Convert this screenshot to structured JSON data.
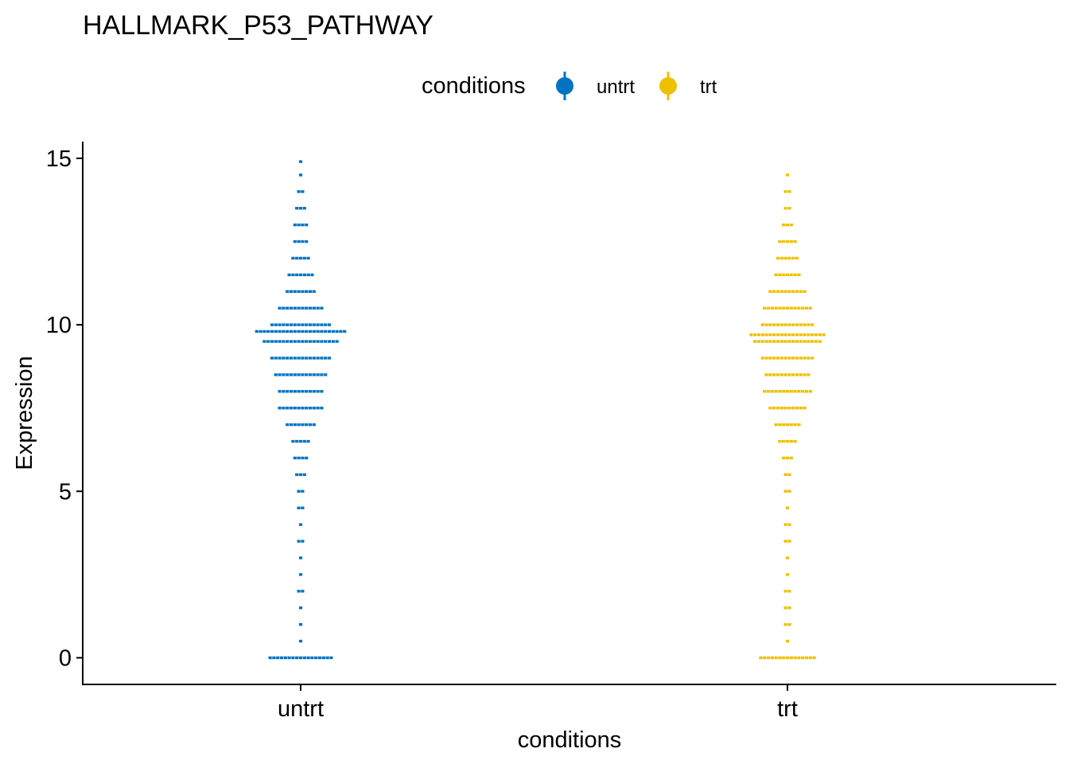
{
  "chart_data": {
    "type": "dotplot",
    "title": "HALLMARK_P53_PATHWAY",
    "xlabel": "conditions",
    "ylabel": "Expression",
    "ylim": [
      -0.8,
      15.5
    ],
    "y_ticks": [
      0,
      5,
      10,
      15
    ],
    "categories": [
      "untrt",
      "trt"
    ],
    "grid": false,
    "legend": {
      "title": "conditions",
      "position": "top",
      "entries": [
        "untrt",
        "trt"
      ]
    },
    "series": [
      {
        "name": "untrt",
        "color": "#0073C2",
        "distribution": [
          {
            "y": 0.0,
            "count": 17
          },
          {
            "y": 0.5,
            "count": 1
          },
          {
            "y": 1.0,
            "count": 1
          },
          {
            "y": 1.5,
            "count": 1
          },
          {
            "y": 2.0,
            "count": 2
          },
          {
            "y": 2.5,
            "count": 1
          },
          {
            "y": 3.0,
            "count": 1
          },
          {
            "y": 3.5,
            "count": 2
          },
          {
            "y": 4.0,
            "count": 1
          },
          {
            "y": 4.5,
            "count": 2
          },
          {
            "y": 5.0,
            "count": 2
          },
          {
            "y": 5.5,
            "count": 3
          },
          {
            "y": 6.0,
            "count": 4
          },
          {
            "y": 6.5,
            "count": 5
          },
          {
            "y": 7.0,
            "count": 8
          },
          {
            "y": 7.5,
            "count": 12
          },
          {
            "y": 8.0,
            "count": 12
          },
          {
            "y": 8.5,
            "count": 14
          },
          {
            "y": 9.0,
            "count": 16
          },
          {
            "y": 9.5,
            "count": 20
          },
          {
            "y": 9.8,
            "count": 24
          },
          {
            "y": 10.0,
            "count": 16
          },
          {
            "y": 10.5,
            "count": 12
          },
          {
            "y": 11.0,
            "count": 8
          },
          {
            "y": 11.5,
            "count": 7
          },
          {
            "y": 12.0,
            "count": 5
          },
          {
            "y": 12.5,
            "count": 4
          },
          {
            "y": 13.0,
            "count": 4
          },
          {
            "y": 13.5,
            "count": 3
          },
          {
            "y": 14.0,
            "count": 2
          },
          {
            "y": 14.5,
            "count": 1
          },
          {
            "y": 14.9,
            "count": 1
          }
        ]
      },
      {
        "name": "trt",
        "color": "#EFC000",
        "distribution": [
          {
            "y": 0.0,
            "count": 15
          },
          {
            "y": 0.5,
            "count": 1
          },
          {
            "y": 1.0,
            "count": 2
          },
          {
            "y": 1.5,
            "count": 2
          },
          {
            "y": 2.0,
            "count": 2
          },
          {
            "y": 2.5,
            "count": 1
          },
          {
            "y": 3.0,
            "count": 1
          },
          {
            "y": 3.5,
            "count": 2
          },
          {
            "y": 4.0,
            "count": 2
          },
          {
            "y": 4.5,
            "count": 1
          },
          {
            "y": 5.0,
            "count": 2
          },
          {
            "y": 5.5,
            "count": 2
          },
          {
            "y": 6.0,
            "count": 3
          },
          {
            "y": 6.5,
            "count": 5
          },
          {
            "y": 7.0,
            "count": 7
          },
          {
            "y": 7.5,
            "count": 10
          },
          {
            "y": 8.0,
            "count": 13
          },
          {
            "y": 8.5,
            "count": 12
          },
          {
            "y": 9.0,
            "count": 14
          },
          {
            "y": 9.5,
            "count": 18
          },
          {
            "y": 9.7,
            "count": 20
          },
          {
            "y": 10.0,
            "count": 14
          },
          {
            "y": 10.5,
            "count": 13
          },
          {
            "y": 11.0,
            "count": 10
          },
          {
            "y": 11.5,
            "count": 7
          },
          {
            "y": 12.0,
            "count": 6
          },
          {
            "y": 12.5,
            "count": 5
          },
          {
            "y": 13.0,
            "count": 3
          },
          {
            "y": 13.5,
            "count": 2
          },
          {
            "y": 14.0,
            "count": 2
          },
          {
            "y": 14.5,
            "count": 1
          }
        ]
      }
    ]
  }
}
